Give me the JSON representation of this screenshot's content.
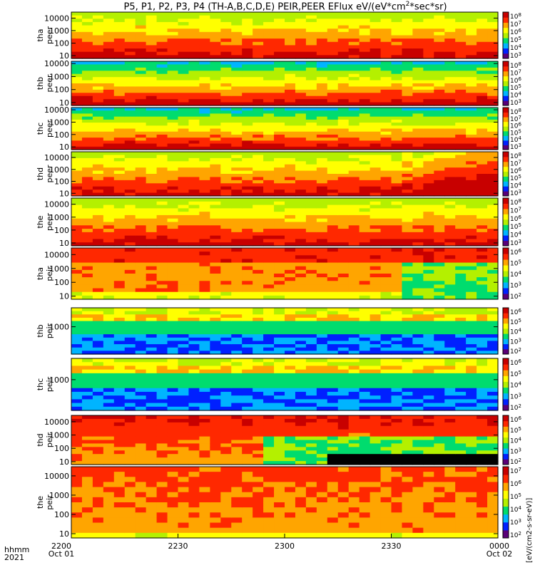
{
  "title_prefix": "P5, P1, P2, P3, P4 (TH-A,B,C,D,E) PEIR,PEER EFlux eV/(eV*cm",
  "title_exp": "2",
  "title_suffix": "*sec*sr)",
  "x_axis": {
    "row1_label": "hhmm",
    "row2_label": "2021",
    "ticks": [
      {
        "t": 0,
        "time": "2200",
        "date": "Oct 01"
      },
      {
        "t": 30,
        "time": "2230",
        "date": ""
      },
      {
        "t": 60,
        "time": "2300",
        "date": ""
      },
      {
        "t": 90,
        "time": "2330",
        "date": ""
      },
      {
        "t": 120,
        "time": "0000",
        "date": "Oct 02"
      }
    ]
  },
  "colorbar_units": "[eV/(cm2-s-sr-eV)]",
  "colors": {
    "spectrum": [
      "#5a0078",
      "#0020ff",
      "#00b4ff",
      "#00dc6e",
      "#b4f000",
      "#ffff00",
      "#ffa500",
      "#ff2800",
      "#c80000"
    ],
    "fill_black": "#000000",
    "flag_red": "#ff0000"
  },
  "chart_data": {
    "type": "heatmap",
    "x_range_minutes_since_2200": [
      0,
      120
    ],
    "panels": [
      {
        "probe": "tha",
        "species": "peer",
        "ylog": true,
        "yrange": [
          6,
          30000
        ],
        "yticks": [
          "10",
          "100",
          "1000",
          "10000"
        ],
        "cbar_ticks": [
          "10^8",
          "10^7",
          "10^6",
          "10^5",
          "10^4",
          "10^3"
        ]
      },
      {
        "probe": "thb",
        "species": "peer",
        "ylog": true,
        "yrange": [
          6,
          15000
        ],
        "yticks": [
          "10",
          "100",
          "1000",
          "10000"
        ],
        "cbar_ticks": [
          "10^8",
          "10^7",
          "10^6",
          "10^5",
          "10^4",
          "10^3"
        ]
      },
      {
        "probe": "thc",
        "species": "peer",
        "ylog": true,
        "yrange": [
          6,
          15000
        ],
        "yticks": [
          "10",
          "100",
          "1000",
          "10000"
        ],
        "cbar_ticks": [
          "10^8",
          "10^7",
          "10^6",
          "10^5",
          "10^4",
          "10^3"
        ]
      },
      {
        "probe": "thd",
        "species": "peer",
        "ylog": true,
        "yrange": [
          6,
          30000
        ],
        "yticks": [
          "10",
          "100",
          "1000",
          "10000"
        ],
        "cbar_ticks": [
          "10^8",
          "10^7",
          "10^6",
          "10^5",
          "10^4",
          "10^3"
        ]
      },
      {
        "probe": "the",
        "species": "peer",
        "ylog": true,
        "yrange": [
          6,
          30000
        ],
        "yticks": [
          "10",
          "100",
          "1000",
          "10000"
        ],
        "cbar_ticks": [
          "10^8",
          "10^7",
          "10^6",
          "10^5",
          "10^4",
          "10^3"
        ]
      },
      {
        "probe": "tha",
        "species": "peir",
        "ylog": true,
        "yrange": [
          6,
          30000
        ],
        "yticks": [
          "10",
          "100",
          "1000",
          "10000"
        ],
        "cbar_ticks": [
          "10^6",
          "10^5",
          "10^4",
          "10^3",
          "10^2"
        ]
      },
      {
        "probe": "thb",
        "species": "peir",
        "ylog": true,
        "yrange": [
          20,
          15000
        ],
        "yticks": [
          "1000"
        ],
        "cbar_ticks": [
          "10^6",
          "10^5",
          "10^4",
          "10^3",
          "10^2"
        ]
      },
      {
        "probe": "thc",
        "species": "peir",
        "ylog": true,
        "yrange": [
          20,
          15000
        ],
        "yticks": [
          "1000"
        ],
        "cbar_ticks": [
          "10^6",
          "10^5",
          "10^4",
          "10^3",
          "10^2"
        ]
      },
      {
        "probe": "thd",
        "species": "peir",
        "ylog": true,
        "yrange": [
          6,
          30000
        ],
        "yticks": [
          "10",
          "100",
          "1000",
          "10000"
        ],
        "cbar_ticks": [
          "10^6",
          "10^5",
          "10^4",
          "10^3",
          "10^2"
        ]
      },
      {
        "probe": "the",
        "species": "peir",
        "ylog": true,
        "yrange": [
          6,
          30000
        ],
        "yticks": [
          "10",
          "100",
          "1000",
          "10000"
        ],
        "cbar_ticks": [
          "10^7",
          "10^6",
          "10^5",
          "10^4",
          "10^3",
          "10^2"
        ]
      }
    ]
  }
}
